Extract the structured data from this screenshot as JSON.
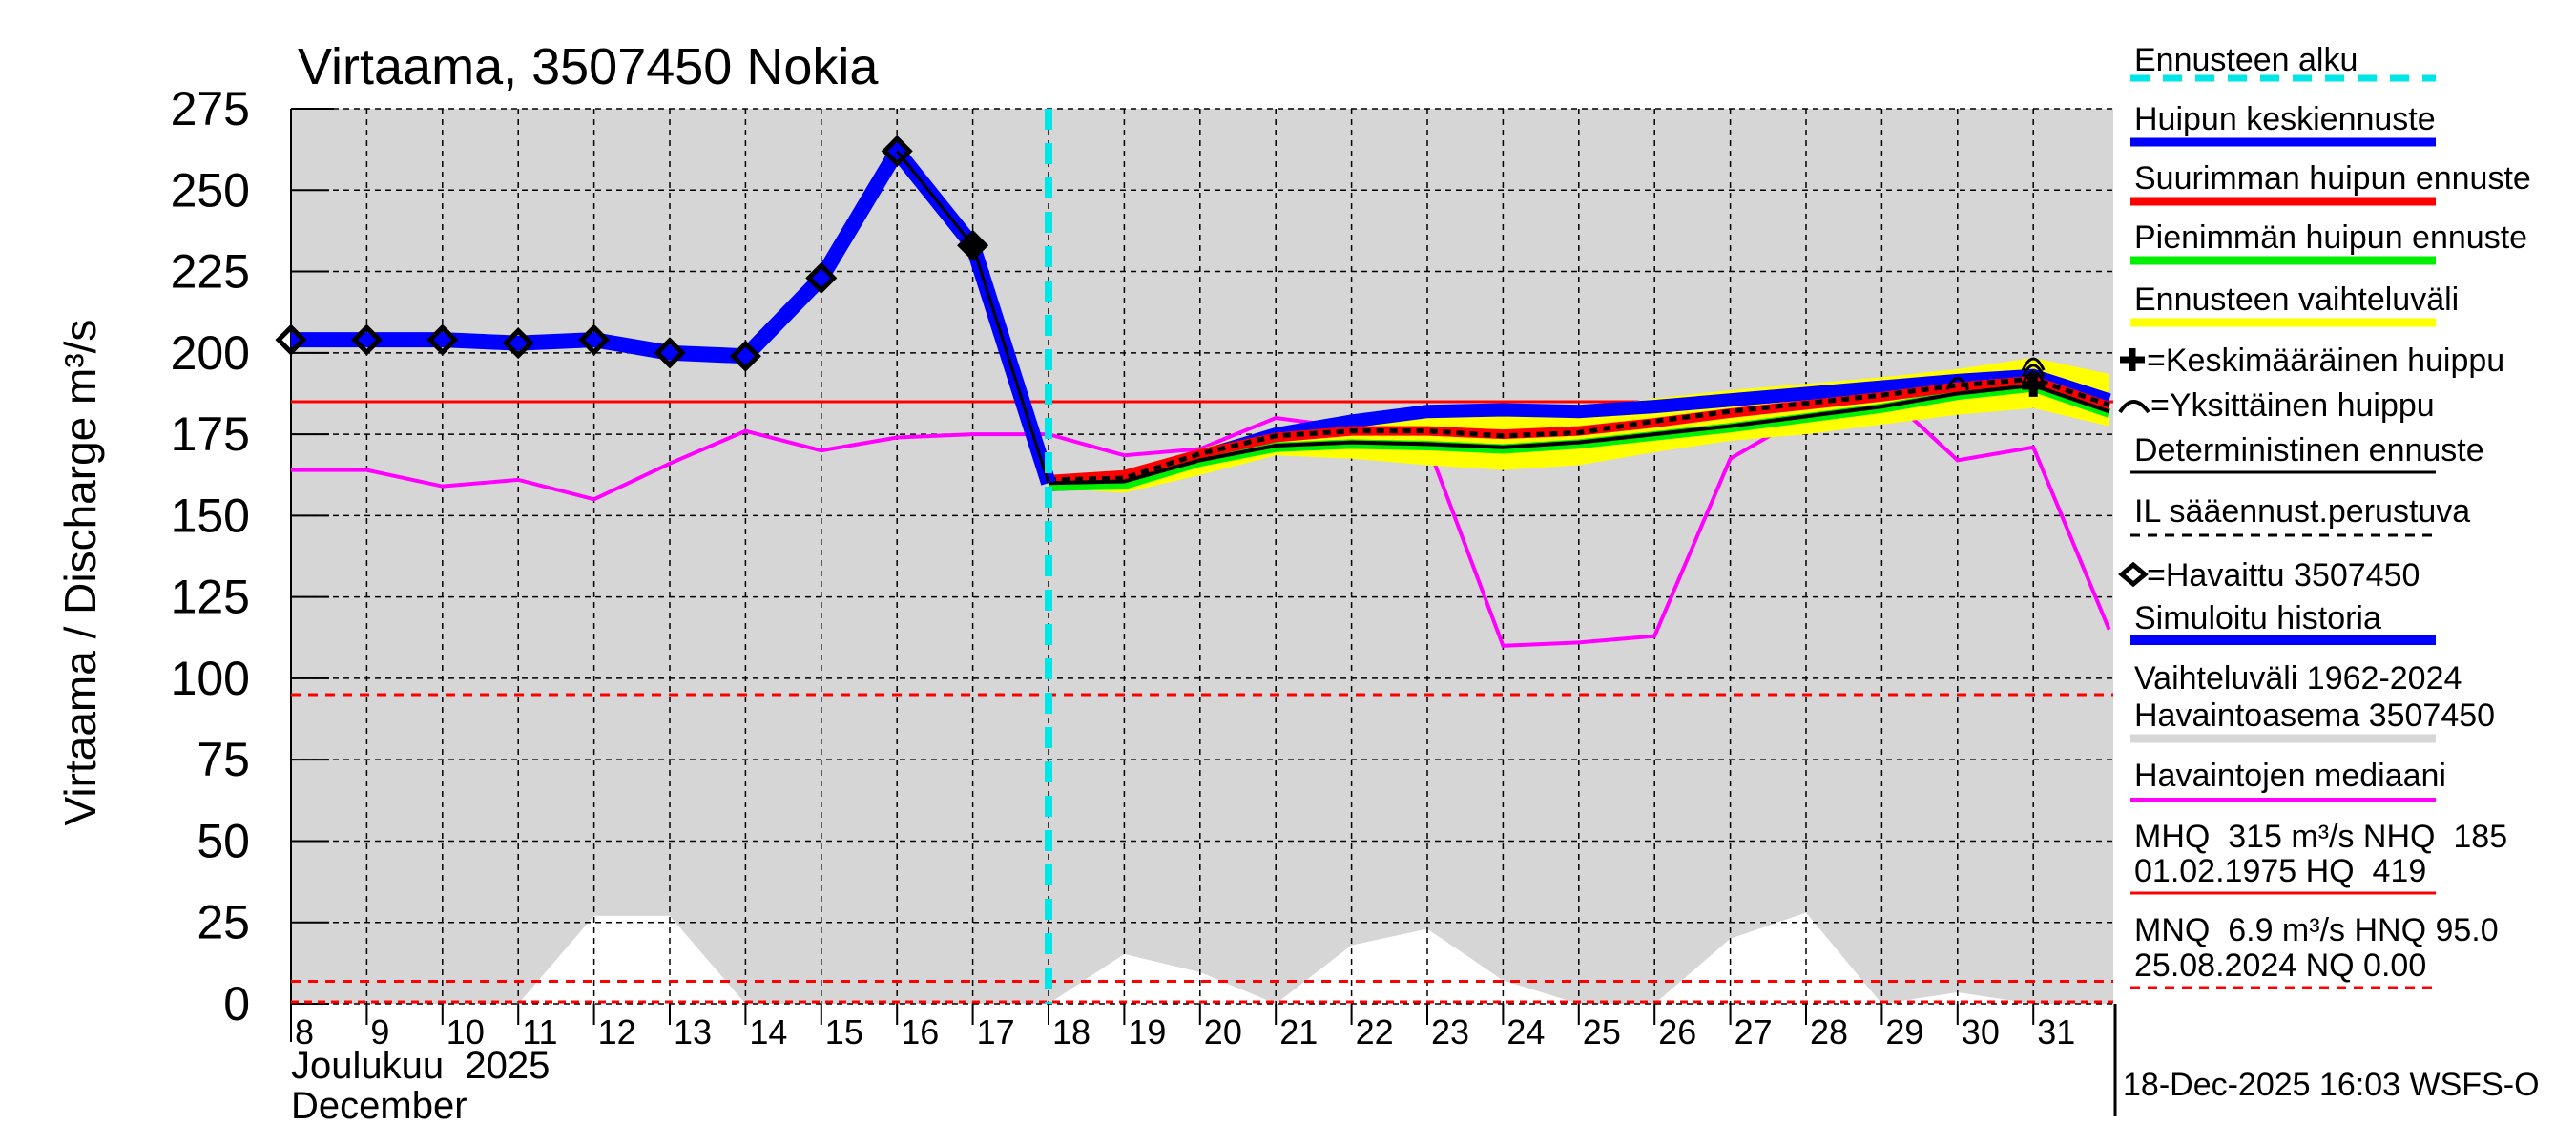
{
  "chart_data": {
    "type": "line",
    "title": "Virtaama, 3507450 Nokia",
    "ylabel": "Virtaama / Discharge    m³/s",
    "xlabel_month": "Joulukuu  2025",
    "xlabel_month_en": "December",
    "ylim": [
      0,
      275
    ],
    "xlim": [
      8,
      32
    ],
    "yticks": [
      0,
      25,
      50,
      75,
      100,
      125,
      150,
      175,
      200,
      225,
      250,
      275
    ],
    "xticks": [
      8,
      9,
      10,
      11,
      12,
      13,
      14,
      15,
      16,
      17,
      18,
      19,
      20,
      21,
      22,
      23,
      24,
      25,
      26,
      27,
      28,
      29,
      30,
      31
    ],
    "grid": true,
    "forecast_start_day": 18,
    "observed": {
      "name": "Havaittu 3507450",
      "x": [
        8,
        9,
        10,
        11,
        12,
        13,
        14,
        15,
        16,
        17
      ],
      "y": [
        204,
        204,
        204,
        203,
        204,
        200,
        199,
        223,
        262,
        233
      ]
    },
    "simulated_history": {
      "name": "Simuloitu historia",
      "x": [
        8,
        9,
        10,
        11,
        12,
        13,
        14,
        15,
        16,
        17,
        18
      ],
      "y": [
        204,
        204,
        204,
        203,
        204,
        200,
        199,
        223,
        262,
        233,
        160
      ]
    },
    "median": {
      "name": "Havaintojen mediaani",
      "x": [
        8,
        9,
        10,
        11,
        12,
        13,
        14,
        15,
        16,
        17,
        18,
        19,
        20,
        21,
        22,
        23,
        24,
        25,
        26,
        27,
        28,
        29,
        30,
        31,
        32
      ],
      "y": [
        164,
        164,
        159,
        161,
        155,
        166,
        176,
        170,
        174,
        175,
        175,
        168.5,
        170.5,
        180,
        177,
        172,
        110,
        111,
        113,
        167.5,
        181,
        188.5,
        167,
        171,
        115
      ]
    },
    "forecast_x": [
      18,
      19,
      20,
      21,
      22,
      23,
      24,
      25,
      26,
      27,
      28,
      29,
      30,
      31,
      32
    ],
    "forecast_range_upper": [
      160.5,
      162.5,
      170.5,
      177,
      181,
      183,
      183,
      183,
      186,
      188.5,
      190.5,
      192.5,
      195,
      198.5,
      193.5
    ],
    "forecast_range_lower": [
      158.5,
      157,
      162.5,
      168.5,
      167.5,
      165.5,
      164,
      165.5,
      169.5,
      173,
      175,
      178,
      181,
      183,
      177.5
    ],
    "peak_mean": [
      159.5,
      160.5,
      168,
      175,
      179,
      182,
      182.5,
      182,
      183.5,
      185.5,
      187.5,
      189.5,
      191.5,
      193,
      185.5
    ],
    "peak_max": [
      161,
      162.5,
      169,
      174,
      176,
      176,
      175,
      176,
      178.5,
      181.5,
      184,
      186.5,
      189.5,
      191.5,
      183.5
    ],
    "peak_min": [
      159,
      159.5,
      166.5,
      171,
      172,
      171.5,
      170.5,
      172,
      174.5,
      177,
      180,
      183,
      187,
      189.5,
      181.5
    ],
    "deterministic": [
      160,
      160.5,
      167,
      171.5,
      172.5,
      172,
      171,
      172.5,
      175,
      177.5,
      180.5,
      183.5,
      187.5,
      190,
      182
    ],
    "il_weather": [
      161,
      161.5,
      169,
      174.5,
      176,
      176,
      174.5,
      175.5,
      179,
      182,
      184.5,
      187,
      190,
      192,
      184
    ],
    "individual_peaks": [
      {
        "x": 30,
        "y": 191
      },
      {
        "x": 31,
        "y": 197
      },
      {
        "x": 31,
        "y": 195
      },
      {
        "x": 31,
        "y": 193
      }
    ],
    "mean_peak": {
      "x": 31,
      "y": 190
    },
    "hist_range_min": {
      "x": [
        8,
        9,
        10,
        11,
        12,
        13,
        14,
        15,
        16,
        17,
        18,
        19,
        20,
        21,
        22,
        23,
        24,
        25,
        26,
        27,
        28,
        29,
        30,
        31,
        32
      ],
      "y": [
        0,
        0,
        0,
        0,
        27,
        27,
        0,
        0,
        0,
        0,
        0,
        15.3,
        9.7,
        0,
        18,
        23,
        7.2,
        0,
        0,
        20,
        28,
        0,
        3.5,
        0,
        0
      ]
    },
    "reference_lines": {
      "NHQ": 185,
      "HNQ": 95,
      "MNQ": 6.9,
      "NQ": 0
    }
  },
  "legend": {
    "forecast_start": "Ennusteen alku",
    "peak_mean": "Huipun keskiennuste",
    "peak_max": "Suurimman huipun ennuste",
    "peak_min": "Pienimmän huipun ennuste",
    "range": "Ennusteen vaihteluväli",
    "mean_peak_marker": "=Keskimääräinen huippu",
    "individual_peak_marker": "=Yksittäinen huippu",
    "deterministic": "Deterministinen ennuste",
    "il": "IL sääennust.perustuva",
    "observed": "=Havaittu 3507450",
    "simulated": "Simuloitu historia",
    "hist_range_1": "Vaihteluväli 1962-2024",
    "hist_range_2": "Havaintoasema 3507450",
    "median": "Havaintojen mediaani",
    "mhq_1": "MHQ  315 m³/s NHQ  185",
    "mhq_2": "01.02.1975 HQ  419",
    "mnq_1": "MNQ  6.9 m³/s HNQ 95.0",
    "mnq_2": "25.08.2024 NQ 0.00"
  },
  "footer": "18-Dec-2025 16:03 WSFS-O",
  "colors": {
    "forecast_start": "#00e5e5",
    "peak_mean": "#0000ff",
    "peak_max": "#ff0000",
    "peak_min": "#00ee00",
    "range": "#ffff00",
    "median": "#ff00ff",
    "hist": "#d6d6d6",
    "ref": "#ff0000"
  }
}
